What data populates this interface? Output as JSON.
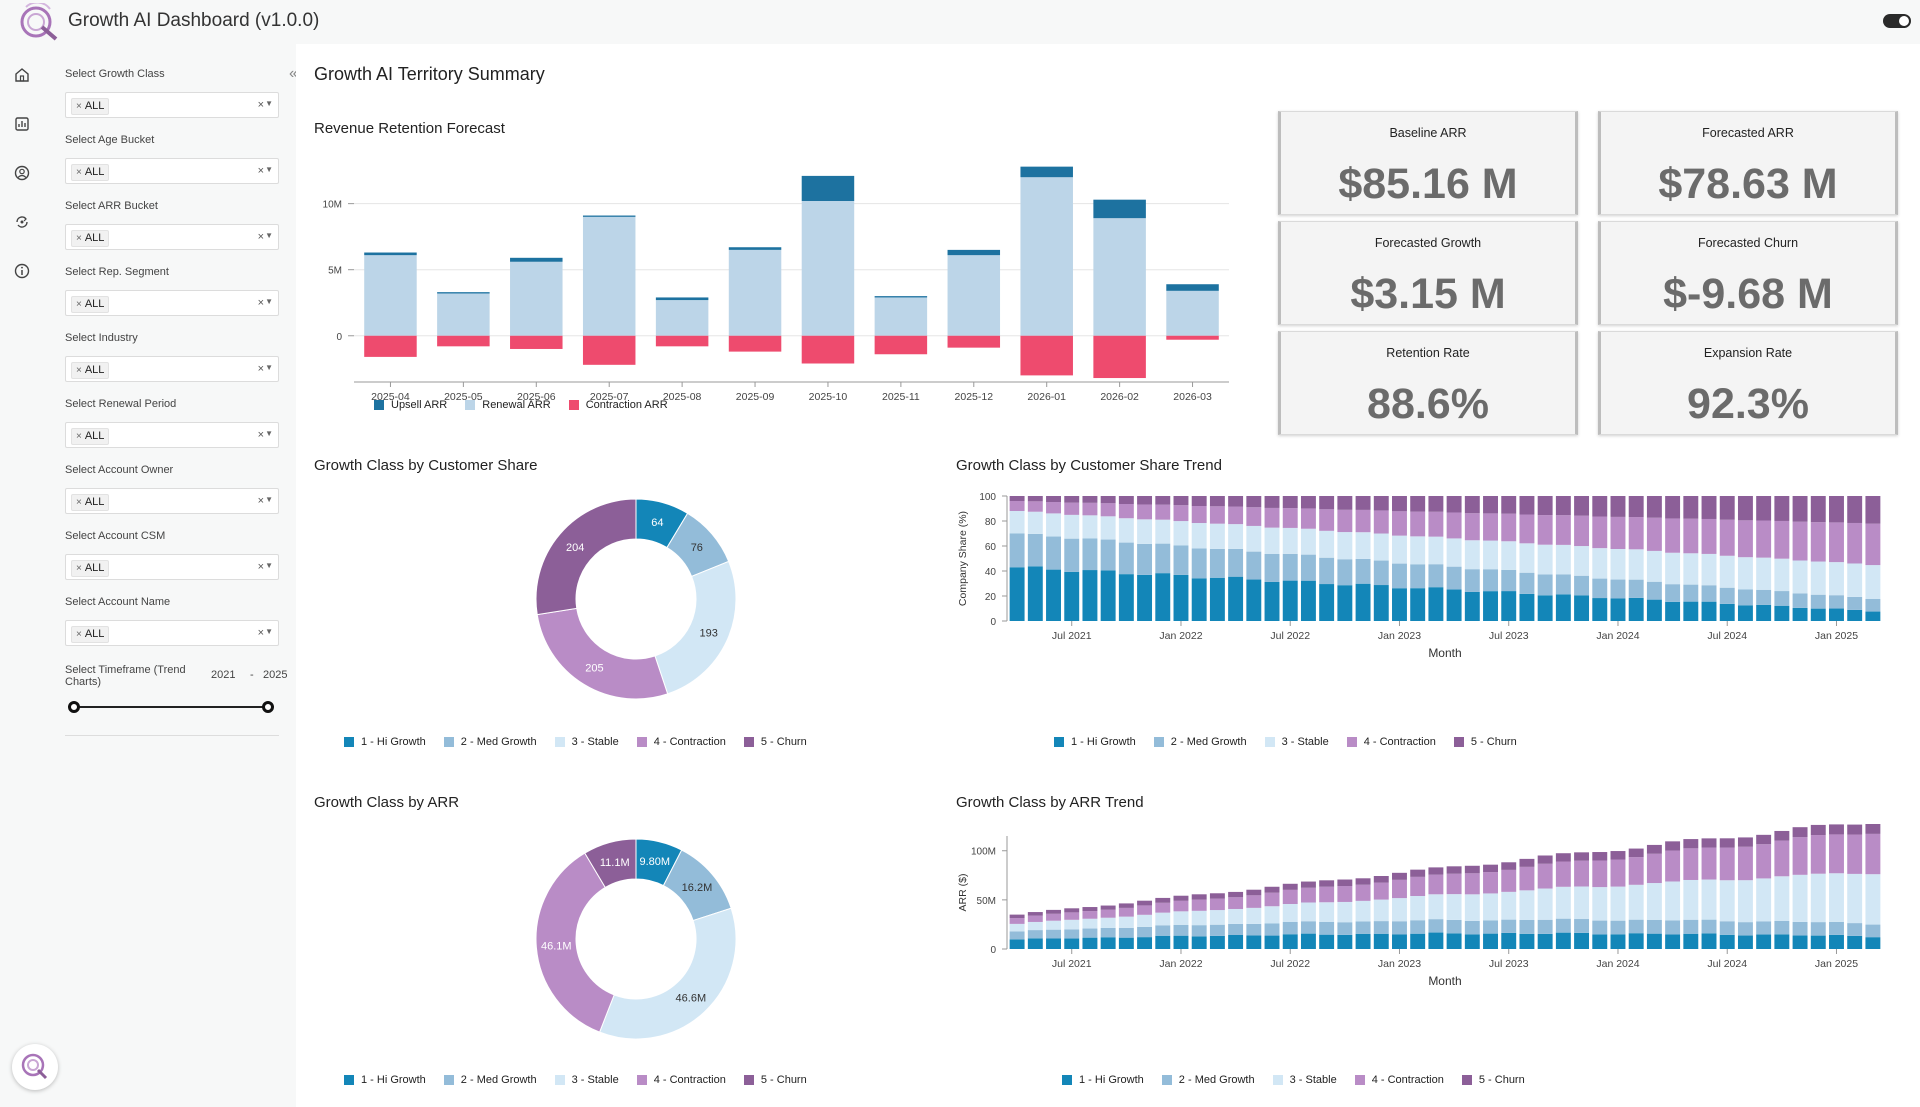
{
  "app": {
    "title": "Growth AI Dashboard (v1.0.0)"
  },
  "colors": {
    "upsell": "#1d72a0",
    "renewal": "#bcd5e8",
    "contraction_arr": "#ee4b6e",
    "hi_growth": "#1386b8",
    "med_growth": "#93bcd9",
    "stable": "#d2e7f5",
    "contraction": "#b98cc6",
    "churn": "#8c5f98"
  },
  "sidebar": {
    "icons": [
      "home-icon",
      "report-icon",
      "user-icon",
      "flow-icon",
      "info-icon"
    ]
  },
  "filters": [
    {
      "label": "Select Growth Class",
      "value": "ALL"
    },
    {
      "label": "Select Age Bucket",
      "value": "ALL"
    },
    {
      "label": "Select ARR Bucket",
      "value": "ALL"
    },
    {
      "label": "Select Rep. Segment",
      "value": "ALL"
    },
    {
      "label": "Select Industry",
      "value": "ALL"
    },
    {
      "label": "Select Renewal Period",
      "value": "ALL"
    },
    {
      "label": "Select Account Owner",
      "value": "ALL"
    },
    {
      "label": "Select Account CSM",
      "value": "ALL"
    },
    {
      "label": "Select Account Name",
      "value": "ALL"
    }
  ],
  "timeframe": {
    "label": "Select Timeframe (Trend Charts)",
    "min": "2021",
    "sep": "-",
    "max": "2025"
  },
  "page": {
    "title": "Growth AI Territory Summary"
  },
  "kpis": [
    {
      "label": "Baseline ARR",
      "value": "$85.16 M"
    },
    {
      "label": "Forecasted ARR",
      "value": "$78.63 M"
    },
    {
      "label": "Forecasted Growth",
      "value": "$3.15 M"
    },
    {
      "label": "Forecasted Churn",
      "value": "$-9.68 M"
    },
    {
      "label": "Retention Rate",
      "value": "88.6%"
    },
    {
      "label": "Expansion Rate",
      "value": "92.3%"
    }
  ],
  "growth_legend": [
    "1 - Hi Growth",
    "2 - Med Growth",
    "3 - Stable",
    "4 - Contraction",
    "5 - Churn"
  ],
  "chart_data": [
    {
      "id": "retention",
      "type": "bar",
      "title": "Revenue Retention Forecast",
      "categories": [
        "2025-04",
        "2025-05",
        "2025-06",
        "2025-07",
        "2025-08",
        "2025-09",
        "2025-10",
        "2025-11",
        "2025-12",
        "2026-01",
        "2026-02",
        "2026-03"
      ],
      "series": [
        {
          "name": "Upsell ARR",
          "values": [
            0.2,
            0.1,
            0.3,
            0.1,
            0.2,
            0.2,
            1.9,
            0.1,
            0.4,
            0.8,
            1.4,
            0.5
          ]
        },
        {
          "name": "Renewal ARR",
          "values": [
            6.1,
            3.2,
            5.6,
            9.0,
            2.7,
            6.5,
            10.2,
            2.9,
            6.1,
            12.0,
            8.9,
            3.4
          ]
        },
        {
          "name": "Contraction ARR",
          "values": [
            -1.6,
            -0.8,
            -1.0,
            -2.2,
            -0.8,
            -1.2,
            -2.1,
            -1.4,
            -0.9,
            -3.0,
            -3.2,
            -0.3
          ]
        }
      ],
      "yticks": [
        "10M",
        "5M",
        "0"
      ],
      "ylim": [
        -3.5,
        13
      ]
    },
    {
      "id": "share-pie",
      "type": "pie",
      "title": "Growth Class by Customer Share",
      "labels": [
        "1 - Hi Growth",
        "2 - Med Growth",
        "3 - Stable",
        "4 - Contraction",
        "5 - Churn"
      ],
      "values": [
        64,
        76,
        193,
        205,
        204
      ],
      "value_labels": [
        "64",
        "76",
        "193",
        "205",
        "204"
      ]
    },
    {
      "id": "share-trend",
      "type": "bar",
      "title": "Growth Class by Customer Share Trend",
      "xlabel": "Month",
      "ylabel": "Company Share (%)",
      "yticks": [
        "100",
        "80",
        "60",
        "40",
        "20",
        "0"
      ],
      "xticks": [
        "Jul 2021",
        "Jan 2022",
        "Jul 2022",
        "Jan 2023",
        "Jul 2023",
        "Jan 2024",
        "Jul 2024",
        "Jan 2025"
      ],
      "start": "2021-04",
      "months": 48,
      "stack_start": {
        "hi_growth": 43,
        "med_growth": 27,
        "stable": 18,
        "contraction": 8,
        "churn": 4
      },
      "stack_end": {
        "hi_growth": 8,
        "med_growth": 10,
        "stable": 27,
        "contraction": 33,
        "churn": 22
      }
    },
    {
      "id": "arr-pie",
      "type": "pie",
      "title": "Growth Class by ARR",
      "labels": [
        "1 - Hi Growth",
        "2 - Med Growth",
        "3 - Stable",
        "4 - Contraction",
        "5 - Churn"
      ],
      "values": [
        9.8,
        16.2,
        46.6,
        46.1,
        11.1
      ],
      "value_labels": [
        "9.80M",
        "16.2M",
        "46.6M",
        "46.1M",
        "11.1M"
      ]
    },
    {
      "id": "arr-trend",
      "type": "bar",
      "title": "Growth Class by ARR Trend",
      "xlabel": "Month",
      "ylabel": "ARR ($)",
      "yticks": [
        "100M",
        "50M",
        "0"
      ],
      "xticks": [
        "Jul 2021",
        "Jan 2022",
        "Jul 2022",
        "Jan 2023",
        "Jul 2023",
        "Jan 2024",
        "Jul 2024",
        "Jan 2025"
      ],
      "start": "2021-04",
      "months": 48,
      "total_start": 35,
      "total_end": 130,
      "stack_start": {
        "hi_growth": 0.28,
        "med_growth": 0.23,
        "stable": 0.22,
        "contraction": 0.17,
        "churn": 0.1
      },
      "stack_end": {
        "hi_growth": 0.1,
        "med_growth": 0.1,
        "stable": 0.4,
        "contraction": 0.32,
        "churn": 0.08
      }
    }
  ],
  "retention_legend": [
    "Upsell ARR",
    "Renewal ARR",
    "Contraction ARR"
  ]
}
